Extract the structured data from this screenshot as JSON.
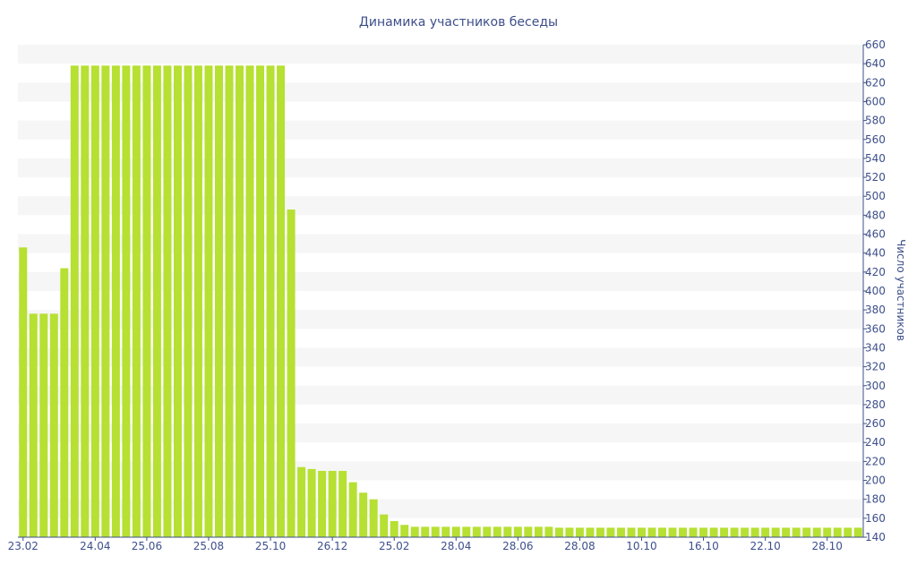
{
  "chart_data": {
    "type": "bar",
    "title": "Динамика участников беседы",
    "ylabel": "Число участников",
    "xlabel": "",
    "ylim": [
      140,
      660
    ],
    "ytick_step": 20,
    "y_axis_side": "right",
    "bar_color": "#b6e032",
    "band_color": "#f6f6f6",
    "text_color": "#3d4f8a",
    "x_tick_labels": [
      {
        "index": 0,
        "label": "23.02"
      },
      {
        "index": 7,
        "label": "24.04"
      },
      {
        "index": 12,
        "label": "25.06"
      },
      {
        "index": 18,
        "label": "25.08"
      },
      {
        "index": 24,
        "label": "25.10"
      },
      {
        "index": 30,
        "label": "26.12"
      },
      {
        "index": 36,
        "label": "25.02"
      },
      {
        "index": 42,
        "label": "28.04"
      },
      {
        "index": 48,
        "label": "28.06"
      },
      {
        "index": 54,
        "label": "28.08"
      },
      {
        "index": 60,
        "label": "10.10"
      },
      {
        "index": 66,
        "label": "16.10"
      },
      {
        "index": 72,
        "label": "22.10"
      },
      {
        "index": 78,
        "label": "28.10"
      }
    ],
    "values": [
      446,
      376,
      376,
      376,
      424,
      638,
      638,
      638,
      638,
      638,
      638,
      638,
      638,
      638,
      638,
      638,
      638,
      638,
      638,
      638,
      638,
      638,
      638,
      638,
      638,
      638,
      486,
      214,
      212,
      210,
      210,
      210,
      198,
      187,
      180,
      164,
      157,
      153,
      151,
      151,
      151,
      151,
      151,
      151,
      151,
      151,
      151,
      151,
      151,
      151,
      151,
      151,
      150,
      150,
      150,
      150,
      150,
      150,
      150,
      150,
      150,
      150,
      150,
      150,
      150,
      150,
      150,
      150,
      150,
      150,
      150,
      150,
      150,
      150,
      150,
      150,
      150,
      150,
      150,
      150,
      150,
      150
    ]
  }
}
